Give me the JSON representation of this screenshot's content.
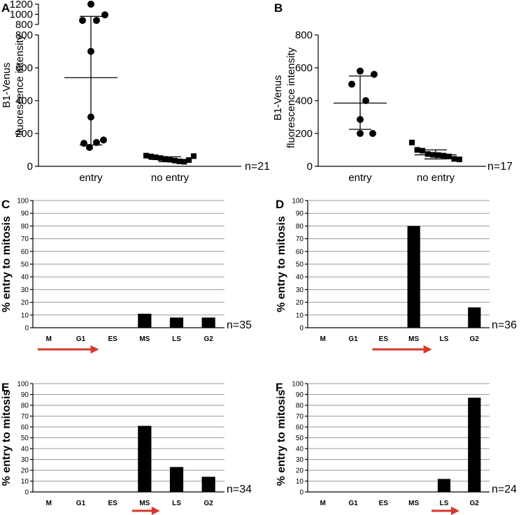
{
  "colors": {
    "arrow": "#d9382b",
    "bar": "#000000",
    "grid": "#9a9a9a"
  },
  "chart_data": [
    {
      "panel": "A",
      "type": "scatter",
      "ylabel_lines": [
        "B1-Venus",
        "fluorescence intensity"
      ],
      "yticks_lower": [
        0,
        200,
        400,
        600,
        800
      ],
      "yticks_upper": [
        800,
        1000,
        1200
      ],
      "categories": [
        "entry",
        "no entry"
      ],
      "n_label": "n=21",
      "groups": [
        {
          "name": "entry",
          "marker": "circle",
          "mean": 540,
          "sd_low": 130,
          "sd_high": 960,
          "values": [
            1200,
            990,
            880,
            880,
            700,
            300,
            160,
            145,
            140,
            115
          ]
        },
        {
          "name": "no entry",
          "marker": "square",
          "mean": 42,
          "sd_low": 28,
          "sd_high": 58,
          "values": [
            65,
            60,
            55,
            50,
            45,
            40,
            35,
            30,
            28,
            38,
            62
          ]
        }
      ]
    },
    {
      "panel": "B",
      "type": "scatter",
      "ylabel_lines": [
        "B1-Venus",
        "fluorescence intensity"
      ],
      "yticks": [
        0,
        200,
        400,
        600,
        800
      ],
      "ylim": [
        0,
        800
      ],
      "categories": [
        "entry",
        "no entry"
      ],
      "n_label": "n=17",
      "groups": [
        {
          "name": "entry",
          "marker": "circle",
          "mean": 385,
          "sd_low": 225,
          "sd_high": 550,
          "values": [
            580,
            560,
            500,
            400,
            285,
            200,
            200
          ]
        },
        {
          "name": "no entry",
          "marker": "square",
          "mean": 70,
          "sd_low": 45,
          "sd_high": 100,
          "values": [
            145,
            100,
            95,
            75,
            70,
            68,
            65,
            60,
            45,
            42
          ]
        }
      ]
    },
    {
      "panel": "C",
      "type": "bar",
      "ylabel": "% entry to mitosis",
      "ylim": [
        0,
        100
      ],
      "yticks": [
        0,
        10,
        20,
        30,
        40,
        50,
        60,
        70,
        80,
        90,
        100
      ],
      "categories": [
        "M",
        "G1",
        "ES",
        "MS",
        "LS",
        "G2"
      ],
      "values": [
        0,
        0,
        0,
        11,
        8,
        8
      ],
      "n_label": "n=35",
      "arrow_span": [
        "M",
        "G1"
      ]
    },
    {
      "panel": "D",
      "type": "bar",
      "ylabel": "% entry to mitosis",
      "ylim": [
        0,
        100
      ],
      "yticks": [
        0,
        10,
        20,
        30,
        40,
        50,
        60,
        70,
        80,
        90,
        100
      ],
      "categories": [
        "M",
        "G1",
        "ES",
        "MS",
        "LS",
        "G2"
      ],
      "values": [
        0,
        0,
        0,
        80,
        0,
        16
      ],
      "n_label": "n=36",
      "arrow_span": [
        "ES",
        "MS"
      ]
    },
    {
      "panel": "E",
      "type": "bar",
      "ylabel": "% entry to mitosis",
      "ylim": [
        0,
        100
      ],
      "yticks": [
        0,
        10,
        20,
        30,
        40,
        50,
        60,
        70,
        80,
        90,
        100
      ],
      "categories": [
        "M",
        "G1",
        "ES",
        "MS",
        "LS",
        "G2"
      ],
      "values": [
        0,
        0,
        0,
        61,
        23,
        14
      ],
      "n_label": "n=34",
      "arrow_span": [
        "MS"
      ]
    },
    {
      "panel": "F",
      "type": "bar",
      "ylabel": "% entry to mitosis",
      "ylim": [
        0,
        100
      ],
      "yticks": [
        0,
        10,
        20,
        30,
        40,
        50,
        60,
        70,
        80,
        90,
        100
      ],
      "categories": [
        "M",
        "G1",
        "ES",
        "MS",
        "LS",
        "G2"
      ],
      "values": [
        0,
        0,
        0,
        0,
        12,
        87
      ],
      "n_label": "n=24",
      "arrow_span": [
        "LS"
      ]
    }
  ]
}
